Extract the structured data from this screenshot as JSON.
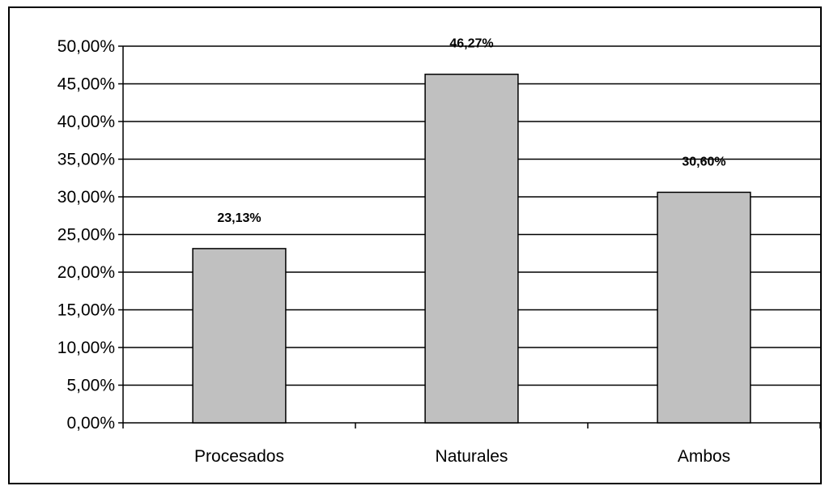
{
  "chart_data": {
    "type": "bar",
    "title": "",
    "xlabel": "",
    "ylabel": "",
    "categories": [
      "Procesados",
      "Naturales",
      "Ambos"
    ],
    "values": [
      23.13,
      46.27,
      30.6
    ],
    "data_labels": [
      "23,13%",
      "46,27%",
      "30,60%"
    ],
    "ylim": [
      0,
      50
    ],
    "y_ticks": [
      0,
      5,
      10,
      15,
      20,
      25,
      30,
      35,
      40,
      45,
      50
    ],
    "y_tick_labels": [
      "0,00%",
      "5,00%",
      "10,00%",
      "15,00%",
      "20,00%",
      "25,00%",
      "30,00%",
      "35,00%",
      "40,00%",
      "45,00%",
      "50,00%"
    ],
    "grid": true,
    "legend": "none",
    "colors": {
      "bar_fill": "#c0c0c0",
      "bar_stroke": "#000000",
      "grid": "#000000",
      "background": "#ffffff"
    }
  }
}
